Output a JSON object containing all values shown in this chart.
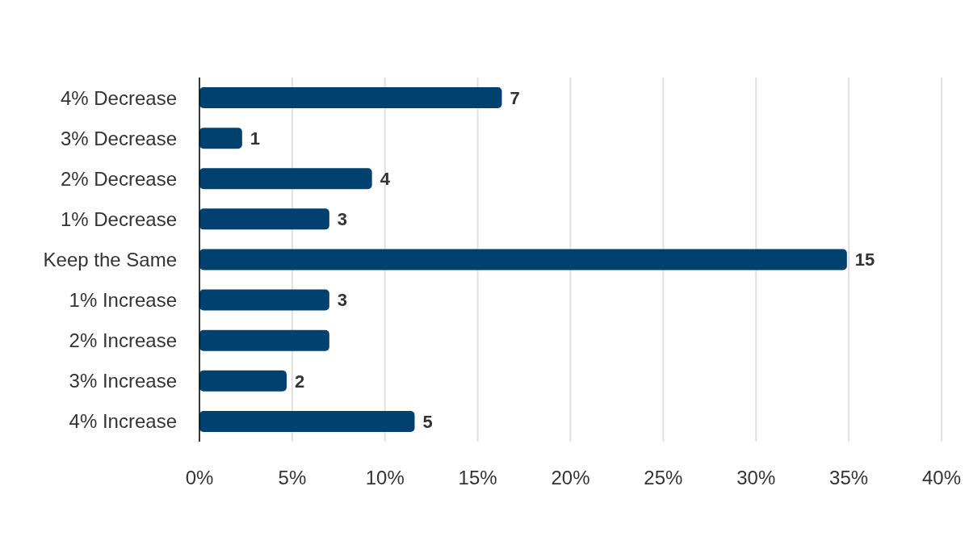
{
  "chart_data": {
    "type": "bar",
    "orientation": "horizontal",
    "categories": [
      "4% Decrease",
      "3% Decrease",
      "2% Decrease",
      "1% Decrease",
      "Keep the Same",
      "1% Increase",
      "2% Increase",
      "3% Increase",
      "4% Increase"
    ],
    "values": [
      16.3,
      2.3,
      9.3,
      7.0,
      34.9,
      7.0,
      7.0,
      4.7,
      11.6
    ],
    "annotations": [
      {
        "text": "7",
        "x": 16.3,
        "y": "4% Decrease"
      },
      {
        "text": "1",
        "x": 2.3,
        "y": "3% Decrease"
      },
      {
        "text": "4",
        "x": 9.3,
        "y": "2% Decrease"
      },
      {
        "text": "3",
        "x": 7.0,
        "y": "1% Decrease"
      },
      {
        "text": "15",
        "x": 34.9,
        "y": "Keep the Same"
      },
      {
        "text": "3",
        "x": 7.0,
        "y": "1% Increase"
      },
      {
        "text": "2",
        "x": 4.7,
        "y": "3% Increase"
      },
      {
        "text": "5",
        "x": 11.6,
        "y": "4% Increase"
      }
    ],
    "color": "#004170",
    "xlim": [
      0,
      40
    ],
    "xticks": [
      {
        "value": 0,
        "label": "0%"
      },
      {
        "value": 5,
        "label": "5%"
      },
      {
        "value": 10,
        "label": "10%"
      },
      {
        "value": 15,
        "label": "15%"
      },
      {
        "value": 20,
        "label": "20%"
      },
      {
        "value": 25,
        "label": "25%"
      },
      {
        "value": 30,
        "label": "30%"
      },
      {
        "value": 35,
        "label": "35%"
      },
      {
        "value": 40,
        "label": "40%"
      }
    ],
    "grid": "x",
    "legend": false
  }
}
